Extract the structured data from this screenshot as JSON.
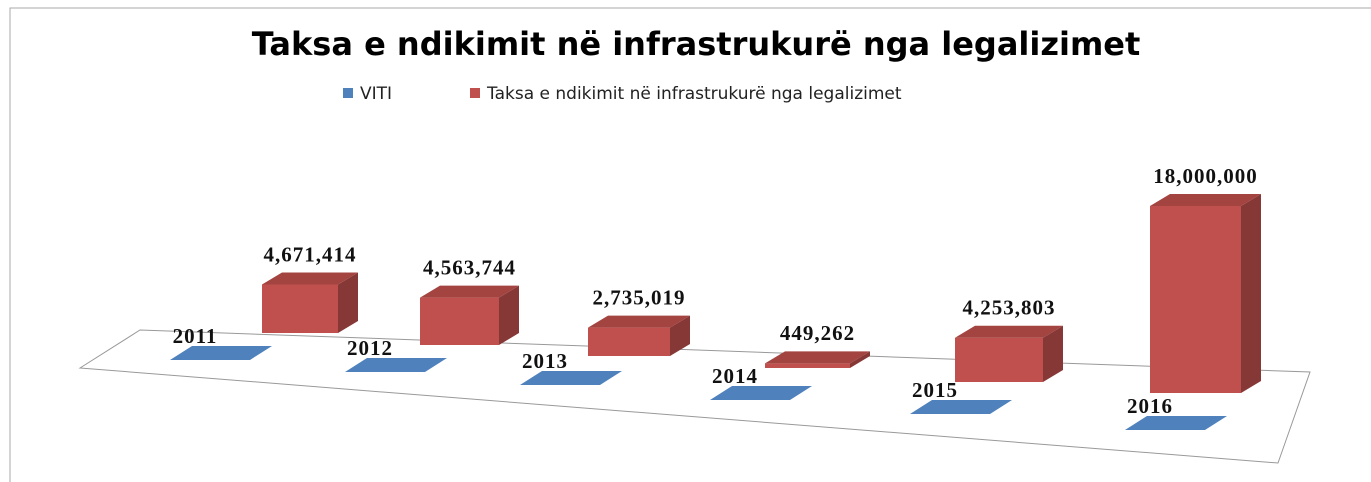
{
  "chart_data": {
    "type": "bar3d",
    "title": "Taksa e ndikimit në infrastrukurë nga legalizimet",
    "series": [
      {
        "name": "VITI",
        "color": "#4f81bd",
        "values": [
          2011,
          2012,
          2013,
          2014,
          2015,
          2016
        ]
      },
      {
        "name": "Taksa e ndikimit në infrastrukurë nga legalizimet",
        "color": "#c0504d",
        "values": [
          4671414,
          4563744,
          2735019,
          449262,
          4253803,
          18000000
        ],
        "value_labels": [
          "4,671,414",
          "4,563,744",
          "2,735,019",
          "449,262",
          "4,253,803",
          "18,000,000"
        ]
      }
    ]
  }
}
